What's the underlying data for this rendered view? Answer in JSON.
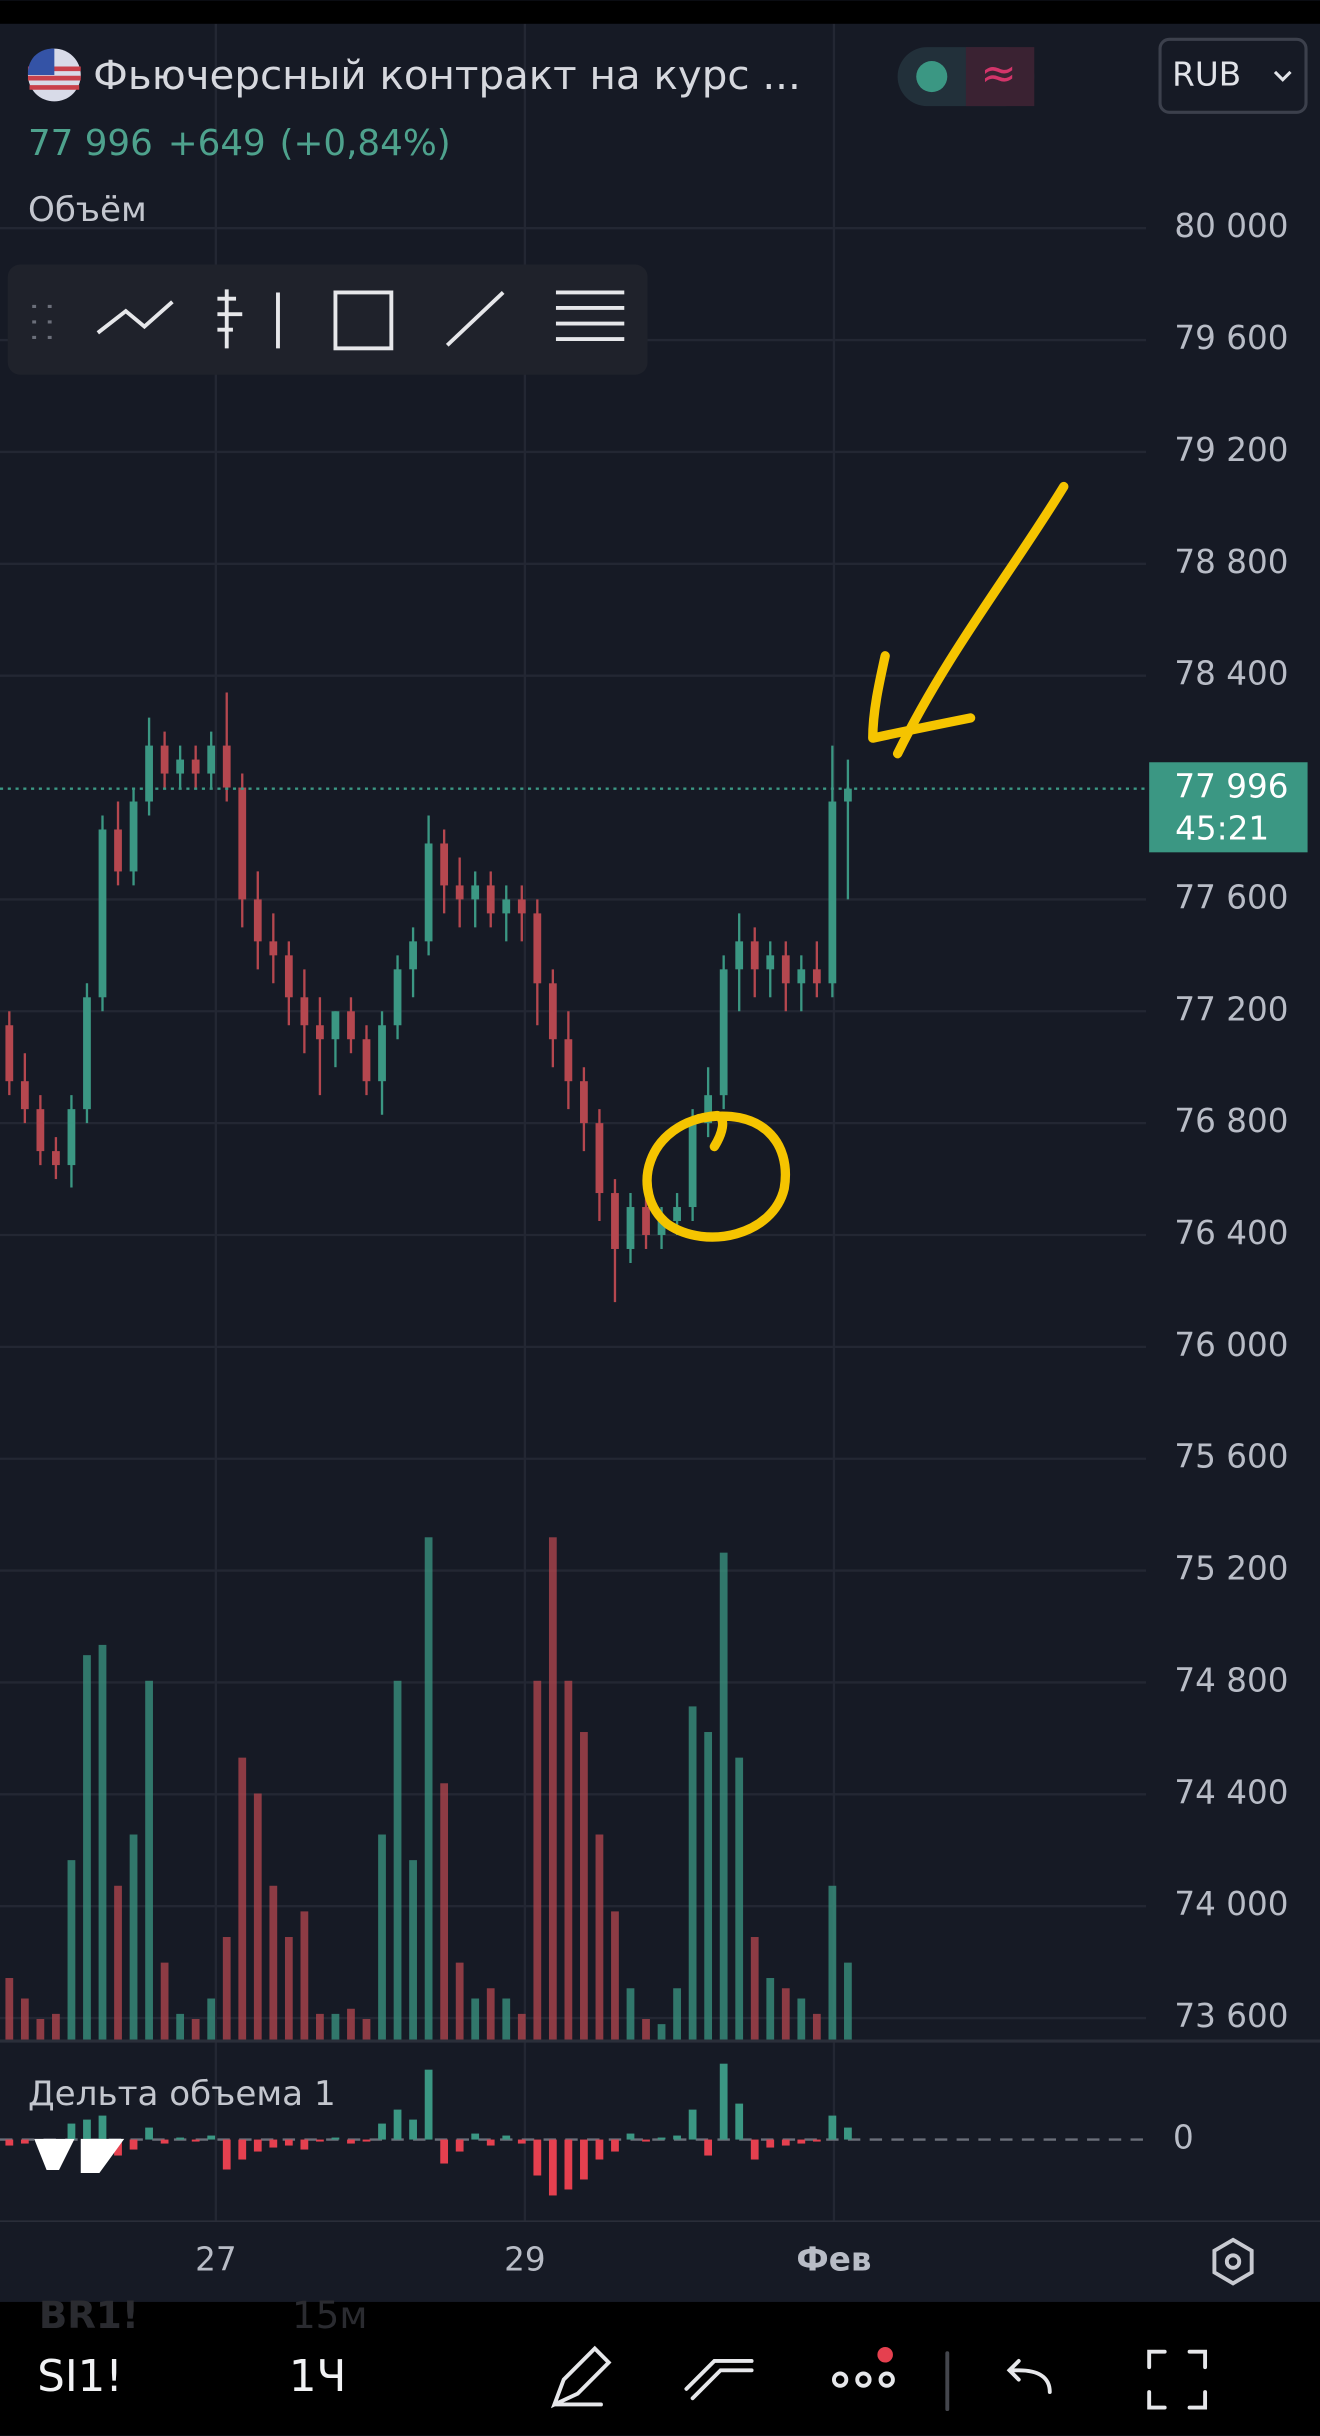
{
  "header": {
    "title": "Фьючерсный контракт на курс ...",
    "currency": "RUB",
    "price": "77 996",
    "change": "+649",
    "change_pct": "(+0,84%)"
  },
  "chart_data": {
    "type": "candlestick",
    "volume_label": "Объём",
    "x": [
      0,
      1,
      2,
      3,
      4,
      5,
      6,
      7,
      8,
      9,
      10,
      11,
      12,
      13,
      14,
      15,
      16,
      17,
      18,
      19,
      20,
      21,
      22,
      23,
      24,
      25,
      26,
      27,
      28,
      29,
      30,
      31,
      32,
      33,
      34,
      35,
      36,
      37,
      38,
      39,
      40,
      41,
      42,
      43,
      44,
      45,
      46,
      47,
      48,
      49,
      50,
      51,
      52,
      53,
      54
    ],
    "xlim": [
      -0.6,
      73.2
    ],
    "xticks": [
      {
        "value": 13.3,
        "label": "27"
      },
      {
        "value": 33.2,
        "label": "29"
      },
      {
        "value": 53.1,
        "label": "Фев"
      }
    ],
    "open": [
      77150,
      76950,
      76850,
      76700,
      76650,
      76850,
      77250,
      77850,
      77700,
      77950,
      78150,
      78050,
      78100,
      78050,
      78150,
      78000,
      77600,
      77450,
      77400,
      77250,
      77150,
      77100,
      77200,
      77100,
      76950,
      77150,
      77350,
      77450,
      77800,
      77650,
      77600,
      77650,
      77550,
      77600,
      77550,
      77300,
      77100,
      76950,
      76800,
      76550,
      76350,
      76500,
      76400,
      76450,
      76500,
      76800,
      76900,
      77350,
      77450,
      77350,
      77400,
      77300,
      77350,
      77300,
      77950
    ],
    "high": [
      77200,
      77050,
      76900,
      76750,
      76900,
      77300,
      77900,
      77950,
      78000,
      78250,
      78200,
      78150,
      78150,
      78200,
      78340,
      78050,
      77700,
      77550,
      77450,
      77350,
      77250,
      77200,
      77250,
      77150,
      77200,
      77400,
      77500,
      77900,
      77850,
      77750,
      77700,
      77700,
      77650,
      77650,
      77600,
      77350,
      77200,
      77000,
      76850,
      76600,
      76550,
      76550,
      76500,
      76550,
      76850,
      77000,
      77400,
      77550,
      77500,
      77450,
      77450,
      77400,
      77450,
      78150,
      78100
    ],
    "low": [
      76900,
      76800,
      76650,
      76600,
      76570,
      76800,
      77200,
      77650,
      77650,
      77900,
      78000,
      78000,
      78000,
      78000,
      77950,
      77500,
      77350,
      77300,
      77150,
      77050,
      76900,
      77000,
      77050,
      76900,
      76830,
      77100,
      77250,
      77400,
      77550,
      77500,
      77500,
      77500,
      77450,
      77450,
      77150,
      77000,
      76850,
      76700,
      76450,
      76160,
      76300,
      76350,
      76350,
      76400,
      76450,
      76750,
      76850,
      77200,
      77250,
      77250,
      77200,
      77200,
      77250,
      77250,
      77600
    ],
    "close": [
      76950,
      76850,
      76700,
      76650,
      76850,
      77250,
      77850,
      77700,
      77950,
      78150,
      78050,
      78100,
      78050,
      78150,
      78000,
      77600,
      77450,
      77400,
      77250,
      77150,
      77100,
      77200,
      77100,
      76950,
      77150,
      77350,
      77450,
      77800,
      77650,
      77600,
      77650,
      77550,
      77600,
      77550,
      77300,
      77100,
      76950,
      76800,
      76550,
      76350,
      76500,
      76400,
      76450,
      76500,
      76800,
      76900,
      77350,
      77450,
      77350,
      77400,
      77300,
      77350,
      77300,
      77950,
      77996
    ],
    "up_color": "#3b9783",
    "down_color": "#b5474f",
    "ylim": [
      73540,
      80370
    ],
    "yticks": [
      {
        "value": 73600,
        "label": "73 600"
      },
      {
        "value": 74000,
        "label": "74 000"
      },
      {
        "value": 74400,
        "label": "74 400"
      },
      {
        "value": 74800,
        "label": "74 800"
      },
      {
        "value": 75200,
        "label": "75 200"
      },
      {
        "value": 75600,
        "label": "75 600"
      },
      {
        "value": 76000,
        "label": "76 000"
      },
      {
        "value": 76400,
        "label": "76 400"
      },
      {
        "value": 76800,
        "label": "76 800"
      },
      {
        "value": 77200,
        "label": "77 200"
      },
      {
        "value": 77600,
        "label": "77 600"
      },
      {
        "value": 78400,
        "label": "78 400"
      },
      {
        "value": 78800,
        "label": "78 800"
      },
      {
        "value": 79200,
        "label": "79 200"
      },
      {
        "value": 79600,
        "label": "79 600"
      },
      {
        "value": 80000,
        "label": "80 000"
      }
    ],
    "grid": true,
    "last_price_label": "77 996",
    "countdown": "45:21",
    "volume": [
      12,
      8,
      4,
      5,
      35,
      75,
      77,
      30,
      40,
      70,
      15,
      5,
      4,
      8,
      20,
      55,
      48,
      30,
      20,
      25,
      5,
      5,
      6,
      4,
      40,
      70,
      35,
      98,
      50,
      15,
      8,
      10,
      8,
      5,
      70,
      98,
      70,
      60,
      40,
      25,
      10,
      4,
      3,
      10,
      65,
      60,
      95,
      55,
      20,
      12,
      10,
      8,
      5,
      30,
      15
    ],
    "volume_ylim": [
      0,
      100
    ],
    "delta": {
      "title": "Дельта объема 1",
      "values": [
        -3,
        -2,
        -2,
        -1,
        8,
        10,
        12,
        -8,
        -5,
        6,
        -2,
        1,
        -1,
        2,
        -15,
        -10,
        -6,
        -4,
        -3,
        -5,
        -1,
        1,
        -2,
        -1,
        8,
        15,
        10,
        35,
        -12,
        -6,
        3,
        -3,
        2,
        -2,
        -18,
        -28,
        -25,
        -20,
        -10,
        -6,
        3,
        -1,
        1,
        2,
        15,
        -8,
        38,
        18,
        -10,
        -4,
        -3,
        -2,
        -1,
        12,
        6
      ],
      "ylim": [
        -30,
        40
      ],
      "yticks": [
        0
      ],
      "up_color": "#3b9783",
      "down_color": "#e5404f"
    }
  },
  "toolbar": {
    "symbol": "SI1!",
    "interval": "1Ч",
    "prev_symbol": "BR1!",
    "prev_interval": "15м"
  }
}
